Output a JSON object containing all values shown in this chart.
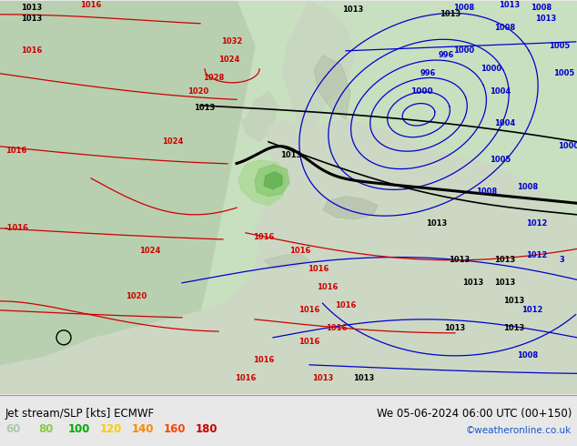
{
  "title_left": "Jet stream/SLP [kts] ECMWF",
  "title_right": "We 05-06-2024 06:00 UTC (00+150)",
  "credit": "©weatheronline.co.uk",
  "legend_values": [
    60,
    80,
    100,
    120,
    140,
    160,
    180
  ],
  "legend_colors": [
    "#aaccaa",
    "#88cc44",
    "#00aa00",
    "#ffcc00",
    "#ff8800",
    "#ff4400",
    "#cc0000"
  ],
  "bg_ocean": "#c8e0c0",
  "bg_land": "#d0dcc8",
  "bg_land2": "#c0d4b8",
  "gray_terrain": "#b0bca8",
  "blue": "#0000cc",
  "red": "#cc0000",
  "black": "#000000",
  "green_jet1": "#90c878",
  "green_jet2": "#78b860",
  "figwidth": 6.34,
  "figheight": 4.9,
  "dpi": 100,
  "bar_color": "#e8e8e8"
}
